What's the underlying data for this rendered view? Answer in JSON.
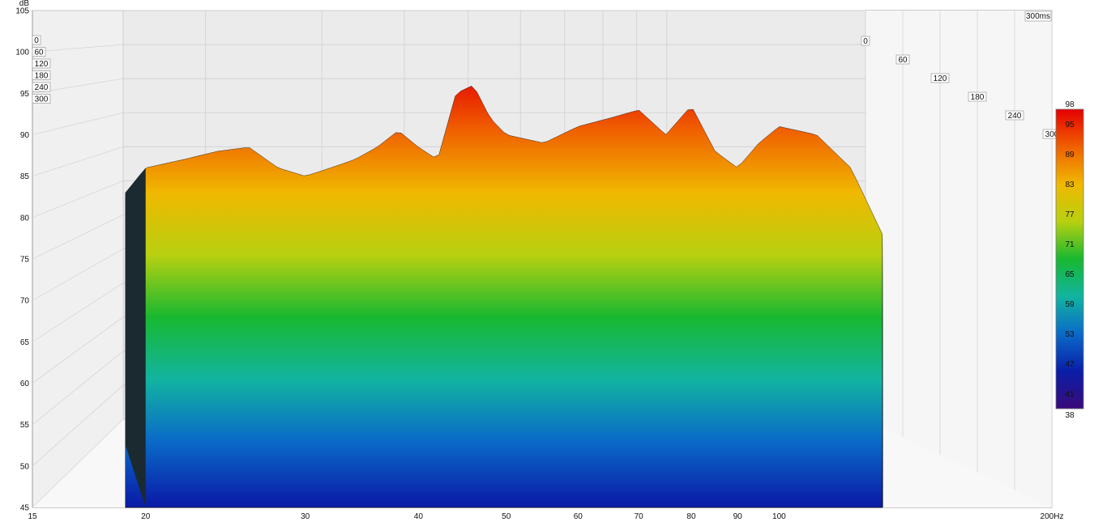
{
  "chart_data": {
    "type": "waterfall",
    "description_units": {
      "x": "Hz",
      "y": "dB",
      "z": "ms"
    },
    "x_axis": {
      "scale": "log",
      "range": [
        15,
        200
      ],
      "ticks": [
        15,
        20,
        30,
        40,
        50,
        60,
        70,
        80,
        90,
        100,
        200
      ],
      "tick_labels": [
        "15",
        "20",
        "30",
        "40",
        "50",
        "60",
        "70",
        "80",
        "90",
        "100",
        "200Hz"
      ]
    },
    "y_axis": {
      "unit_label": "dB",
      "range": [
        45,
        105
      ],
      "ticks": [
        45,
        50,
        55,
        60,
        65,
        70,
        75,
        80,
        85,
        90,
        95,
        100,
        105
      ]
    },
    "z_axis": {
      "range": [
        0,
        300
      ],
      "ticks": [
        0,
        60,
        120,
        180,
        240,
        300
      ],
      "tick_labels": [
        "0",
        "60",
        "120",
        "180",
        "240",
        "300"
      ],
      "corner_label": "300ms"
    },
    "color_scale": {
      "min": 38,
      "max": 98,
      "tick_values": [
        38,
        41,
        47,
        53,
        59,
        65,
        71,
        77,
        83,
        89,
        95,
        98
      ],
      "colors": [
        "#3a0a7a",
        "#0a1ea8",
        "#0a6ac8",
        "#12b4a0",
        "#18b830",
        "#b8d010",
        "#f0b800",
        "#f06000",
        "#e40000"
      ]
    },
    "grid": true,
    "approx_front_response": {
      "freq_hz": [
        19,
        20,
        22,
        24,
        26,
        28,
        30,
        32,
        34,
        36,
        38,
        40,
        42,
        44,
        46,
        48,
        50,
        55,
        60,
        65,
        70,
        75,
        80,
        85,
        90,
        95,
        100,
        110,
        120,
        130
      ],
      "db": [
        83,
        86,
        87,
        88,
        88.5,
        86,
        85,
        86,
        87,
        88.5,
        90.5,
        88.5,
        87,
        95,
        96,
        92,
        90,
        89,
        91,
        92,
        93,
        90,
        93.5,
        88,
        86,
        89,
        91,
        90,
        86,
        78
      ]
    },
    "peak": {
      "freq_hz": 44,
      "db": 98
    }
  }
}
